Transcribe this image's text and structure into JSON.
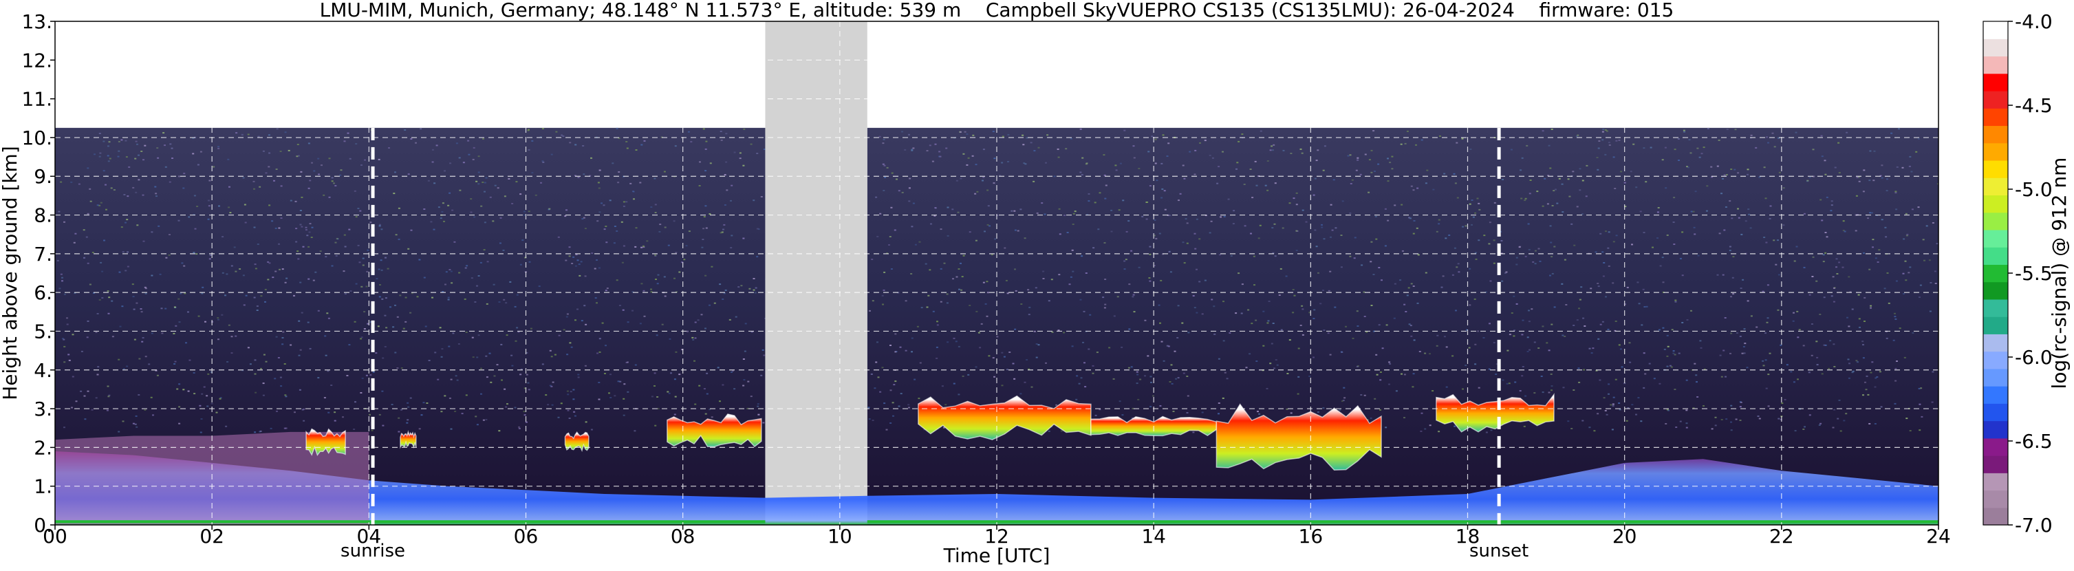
{
  "chart_data": {
    "type": "heatmap",
    "title": "LMU-MIM, Munich, Germany; 48.148° N 11.573° E, altitude: 539 m    Campbell SkyVUEPRO CS135 (CS135LMU): 26-04-2024    firmware: 015",
    "xlabel": "Time [UTC]",
    "ylabel": "Height above ground [km]",
    "xlim": [
      0,
      24
    ],
    "ylim": [
      0,
      13
    ],
    "x_ticks": [
      "00",
      "02",
      "04",
      "06",
      "08",
      "10",
      "12",
      "14",
      "16",
      "18",
      "20",
      "22",
      "24"
    ],
    "y_ticks": [
      "0.",
      "1.",
      "2.",
      "3.",
      "4.",
      "5.",
      "6.",
      "7.",
      "8.",
      "9.",
      "10.",
      "11.",
      "12.",
      "13."
    ],
    "grid": true,
    "data_gap": [
      9.05,
      10.35
    ],
    "measurement_top_km": 10.25,
    "markers": [
      {
        "label": "sunrise",
        "x": 4.05
      },
      {
        "label": "sunset",
        "x": 18.4
      }
    ],
    "colorbar": {
      "label": "log(rc-signal) @ 912 nm",
      "range": [
        -7.0,
        -4.0
      ],
      "ticks": [
        "-4.0",
        "-4.5",
        "-5.0",
        "-5.5",
        "-6.0",
        "-6.5",
        "-7.0"
      ],
      "colors": [
        "#9b7e9b",
        "#a88aa8",
        "#b596b5",
        "#7a1a7a",
        "#8a1a8a",
        "#2233cc",
        "#2255ee",
        "#3377ff",
        "#6699ff",
        "#88aaff",
        "#aabbee",
        "#22aa88",
        "#33bb99",
        "#119922",
        "#22bb33",
        "#44dd88",
        "#66ee99",
        "#99ee44",
        "#ccee22",
        "#eeee33",
        "#ffdd00",
        "#ffaa00",
        "#ff8800",
        "#ff4400",
        "#ee2222",
        "#ff0000",
        "#f4b8b8",
        "#ece0e0",
        "#ffffff"
      ]
    },
    "features": [
      {
        "name": "boundary layer aerosol",
        "x": [
          0,
          1,
          2,
          3,
          4,
          5,
          6,
          7,
          8,
          9.05,
          10.35,
          12,
          14,
          16,
          18,
          19,
          20,
          21,
          22,
          23,
          24
        ],
        "top_km": [
          1.9,
          1.8,
          1.6,
          1.4,
          1.15,
          1.0,
          0.9,
          0.8,
          0.75,
          0.7,
          0.75,
          0.8,
          0.7,
          0.65,
          0.8,
          1.2,
          1.6,
          1.7,
          1.4,
          1.2,
          1.0
        ]
      },
      {
        "name": "residual layer",
        "x": [
          0,
          1,
          2,
          3,
          4
        ],
        "top_km": [
          2.2,
          2.3,
          2.3,
          2.4,
          2.4
        ]
      },
      {
        "name": "cloud",
        "x_range": [
          3.2,
          3.7
        ],
        "base_km": 1.8,
        "top_km": 2.5
      },
      {
        "name": "cloud",
        "x_range": [
          4.4,
          4.6
        ],
        "base_km": 2.0,
        "top_km": 2.4
      },
      {
        "name": "cloud",
        "x_range": [
          6.5,
          6.8
        ],
        "base_km": 1.9,
        "top_km": 2.4
      },
      {
        "name": "cloud",
        "x_range": [
          7.8,
          9.0
        ],
        "base_km": 2.0,
        "top_km": 2.9
      },
      {
        "name": "cloud",
        "x_range": [
          11.0,
          13.2
        ],
        "base_km": 2.2,
        "top_km": 3.4
      },
      {
        "name": "cloud",
        "x_range": [
          13.2,
          14.8
        ],
        "base_km": 2.3,
        "top_km": 2.8
      },
      {
        "name": "cloud",
        "x_range": [
          14.8,
          16.9
        ],
        "base_km": 1.4,
        "top_km": 3.2
      },
      {
        "name": "cloud",
        "x_range": [
          17.6,
          19.1
        ],
        "base_km": 2.4,
        "top_km": 3.4
      }
    ]
  }
}
